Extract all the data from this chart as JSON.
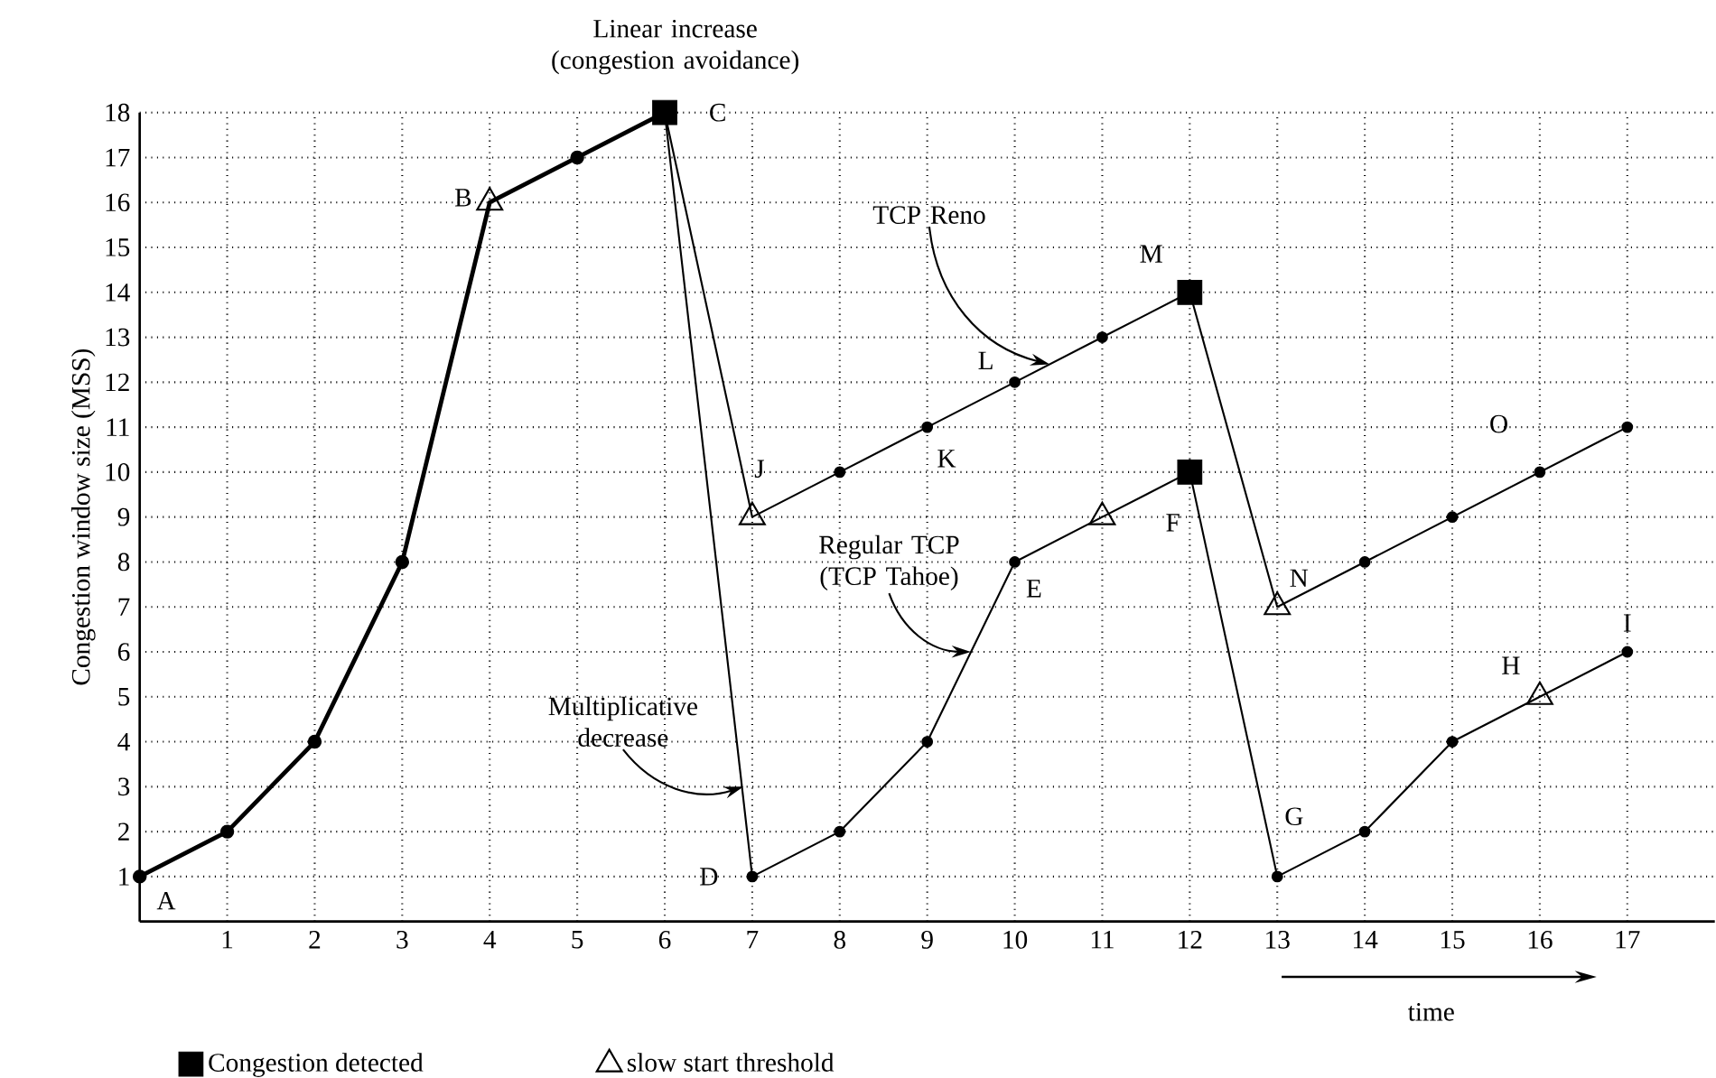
{
  "chart_data": {
    "type": "line",
    "xlabel": "time",
    "ylabel": "Congestion window size (MSS)",
    "xlim": [
      0,
      18
    ],
    "ylim": [
      0,
      18
    ],
    "xticks": [
      1,
      2,
      3,
      4,
      5,
      6,
      7,
      8,
      9,
      10,
      11,
      12,
      13,
      14,
      15,
      16,
      17
    ],
    "yticks": [
      1,
      2,
      3,
      4,
      5,
      6,
      7,
      8,
      9,
      10,
      11,
      12,
      13,
      14,
      15,
      16,
      17,
      18
    ],
    "grid": true,
    "legend": "bottom",
    "marker": "circle",
    "series": [
      {
        "color": "#000000",
        "x": [
          0,
          1,
          2,
          3,
          4,
          5,
          6
        ],
        "values": [
          1,
          2,
          4,
          8,
          16,
          17,
          18
        ]
      },
      {
        "color": "#000000",
        "x": [
          6,
          7,
          8,
          9,
          10,
          11,
          12,
          13,
          14,
          15,
          16,
          17
        ],
        "values": [
          18,
          9,
          10,
          11,
          12,
          13,
          14,
          7,
          8,
          9,
          10,
          11
        ]
      },
      {
        "color": "#000000",
        "x": [
          6,
          7,
          8,
          9,
          10,
          11,
          12,
          13,
          14,
          15,
          16,
          17
        ],
        "values": [
          18,
          1,
          2,
          4,
          8,
          9,
          10,
          1,
          2,
          4,
          5,
          6
        ]
      },
      {
        "name": "Congestion detected",
        "type": "scatter",
        "marker": "square",
        "color": "#000000",
        "x": [
          6,
          12,
          12
        ],
        "values": [
          18,
          14,
          10
        ]
      },
      {
        "name": "slow start threshold",
        "type": "scatter",
        "marker": "triangle",
        "color": "#000000",
        "x": [
          4,
          7,
          11,
          13,
          16
        ],
        "values": [
          16,
          9,
          9,
          7,
          5
        ]
      }
    ],
    "annotations": [
      "Linear increase (congestion avoidance)",
      {
        "text": "TCP Reno",
        "x": 10.4,
        "y": 12.4
      },
      {
        "text": "Regular TCP (TCP Tahoe)",
        "x": 9.5,
        "y": 6
      },
      {
        "text": "Multiplicative decrease",
        "x": 6.9,
        "y": 3
      },
      {
        "text": "A",
        "x": 0,
        "y": 1
      },
      {
        "text": "B",
        "x": 4,
        "y": 16
      },
      {
        "text": "C",
        "x": 6,
        "y": 18
      },
      {
        "text": "D",
        "x": 7,
        "y": 1
      },
      {
        "text": "E",
        "x": 10,
        "y": 8
      },
      {
        "text": "F",
        "x": 12,
        "y": 10
      },
      {
        "text": "G",
        "x": 13,
        "y": 1
      },
      {
        "text": "H",
        "x": 16,
        "y": 5
      },
      {
        "text": "I",
        "x": 17,
        "y": 6
      },
      {
        "text": "J",
        "x": 7,
        "y": 9
      },
      {
        "text": "K",
        "x": 9,
        "y": 11
      },
      {
        "text": "L",
        "x": 10,
        "y": 12
      },
      {
        "text": "M",
        "x": 12,
        "y": 14
      },
      {
        "text": "N",
        "x": 13,
        "y": 7
      },
      {
        "text": "O",
        "x": 16,
        "y": 10
      }
    ]
  }
}
